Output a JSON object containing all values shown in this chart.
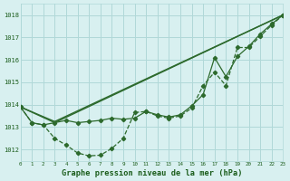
{
  "title": "Graphe pression niveau de la mer (hPa)",
  "bg_color": "#d8f0f0",
  "grid_color": "#b0d8d8",
  "line_color": "#2d6a2d",
  "x_min": 0,
  "x_max": 23,
  "y_min": 1011.5,
  "y_max": 1018.5,
  "yticks": [
    1012,
    1013,
    1014,
    1015,
    1016,
    1017,
    1018
  ],
  "xticks": [
    0,
    1,
    2,
    3,
    4,
    5,
    6,
    7,
    8,
    9,
    10,
    11,
    12,
    13,
    14,
    15,
    16,
    17,
    18,
    19,
    20,
    21,
    22,
    23
  ],
  "series_wavy_x": [
    0,
    1,
    2,
    3,
    4,
    5,
    6,
    7,
    8,
    9,
    10,
    11,
    12,
    13,
    14,
    15,
    16,
    17,
    18,
    19,
    20,
    21,
    22,
    23
  ],
  "series_wavy_y": [
    1013.9,
    1013.2,
    1013.1,
    1012.5,
    1012.2,
    1011.85,
    1011.72,
    1011.75,
    1012.05,
    1012.5,
    1013.65,
    1013.7,
    1013.5,
    1013.4,
    1013.5,
    1013.85,
    1014.85,
    1015.45,
    1014.85,
    1016.55,
    1016.55,
    1017.05,
    1017.55,
    1018.0
  ],
  "series_line1_x": [
    0,
    3,
    23
  ],
  "series_line1_y": [
    1013.9,
    1013.2,
    1018.0
  ],
  "series_line2_x": [
    0,
    3,
    23
  ],
  "series_line2_y": [
    1013.9,
    1013.25,
    1018.0
  ],
  "series_curve_x": [
    0,
    1,
    2,
    3,
    4,
    5,
    6,
    7,
    8,
    9,
    10,
    11,
    12,
    13,
    14,
    15,
    16,
    17,
    18,
    19,
    20,
    21,
    22,
    23
  ],
  "series_curve_y": [
    1013.9,
    1013.2,
    1013.1,
    1013.2,
    1013.3,
    1013.2,
    1013.25,
    1013.3,
    1013.4,
    1013.35,
    1013.4,
    1013.7,
    1013.55,
    1013.45,
    1013.55,
    1013.95,
    1014.45,
    1016.1,
    1015.25,
    1016.15,
    1016.6,
    1017.15,
    1017.6,
    1018.0
  ]
}
